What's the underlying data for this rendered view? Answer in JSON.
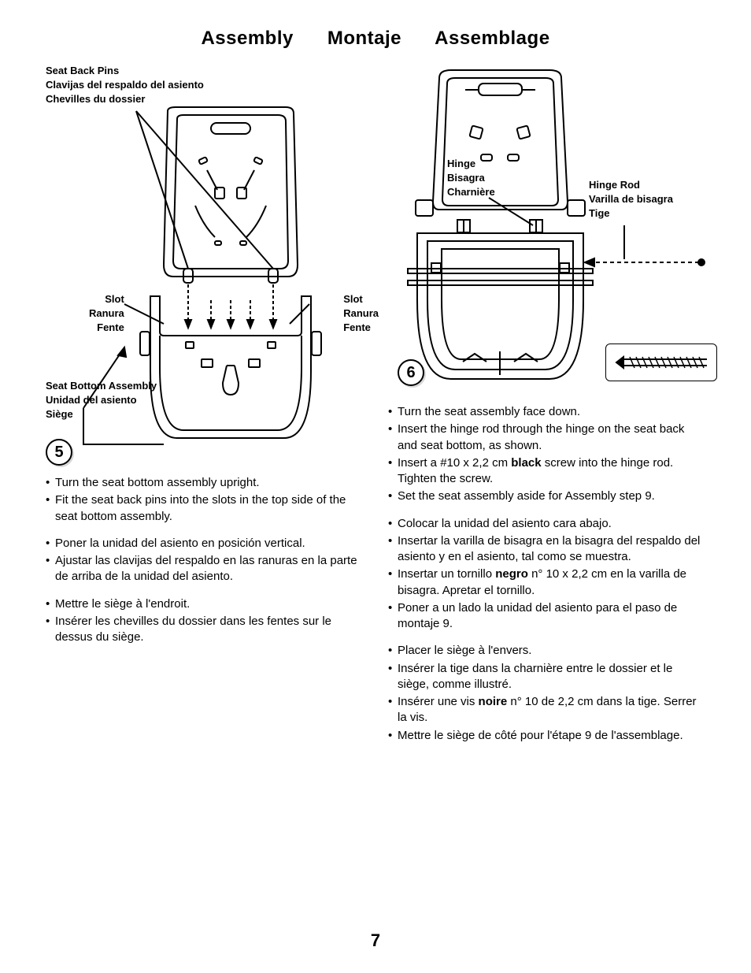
{
  "title": "Assembly      Montaje      Assemblage",
  "page_number": "7",
  "colors": {
    "text": "#000000",
    "bg": "#ffffff",
    "stroke": "#000000"
  },
  "step5": {
    "number": "5",
    "labels": {
      "seat_back_pins": {
        "en": "Seat Back Pins",
        "es": "Clavijas del respaldo del asiento",
        "fr": "Chevilles du dossier"
      },
      "slot_left": {
        "en": "Slot",
        "es": "Ranura",
        "fr": "Fente"
      },
      "slot_right": {
        "en": "Slot",
        "es": "Ranura",
        "fr": "Fente"
      },
      "seat_bottom": {
        "en": "Seat Bottom Assembly",
        "es": "Unidad del asiento",
        "fr": "Siège"
      }
    },
    "instructions_en": [
      "Turn the seat bottom assembly upright.",
      "Fit the seat back pins into the slots in the top side of the seat bottom assembly."
    ],
    "instructions_es": [
      "Poner la unidad del asiento en posición vertical.",
      "Ajustar las clavijas del respaldo en las ranuras en la parte de arriba de la unidad del asiento."
    ],
    "instructions_fr": [
      "Mettre le siège à l'endroit.",
      "Insérer les chevilles du dossier dans les fentes sur le dessus du siège."
    ]
  },
  "step6": {
    "number": "6",
    "labels": {
      "hinge": {
        "en": "Hinge",
        "es": "Bisagra",
        "fr": "Charnière"
      },
      "hinge_rod": {
        "en": "Hinge Rod",
        "es": "Varilla de bisagra",
        "fr": "Tige"
      }
    },
    "instructions_en": [
      "Turn the seat assembly face down.",
      "Insert the hinge rod through the hinge on the seat back and seat bottom, as shown.",
      "Insert a #10 x 2,2 cm <b>black</b> screw into the hinge rod. Tighten the screw.",
      "Set the seat assembly aside for Assembly step 9."
    ],
    "instructions_es": [
      "Colocar la unidad del asiento cara abajo.",
      "Insertar la varilla de bisagra en la bisagra del respaldo del asiento y en el asiento, tal como se muestra.",
      "Insertar un tornillo <b>negro</b> n° 10 x 2,2 cm en la varilla de bisagra. Apretar el tornillo.",
      "Poner a un lado la unidad del asiento para el paso de montaje 9."
    ],
    "instructions_fr": [
      "Placer le siège à l'envers.",
      "Insérer la tige dans la charnière entre le dossier et le siège, comme illustré.",
      "Insérer une vis <b>noire</b> n° 10 de 2,2 cm dans la tige. Serrer la vis.",
      "Mettre le siège de côté pour l'étape 9 de l'assemblage."
    ]
  }
}
